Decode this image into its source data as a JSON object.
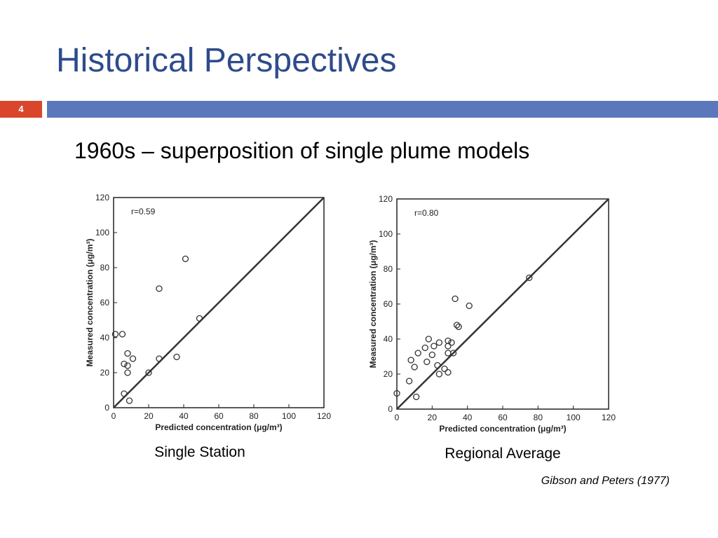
{
  "slide": {
    "title": "Historical Perspectives",
    "number": "4",
    "subtitle": "1960s – superposition of single plume models",
    "captions": [
      "Single Station",
      "Regional Average"
    ],
    "citation": "Gibson and Peters (1977)"
  },
  "chart_data": [
    {
      "type": "scatter",
      "annotation": "r=0.59",
      "x_label": "Predicted concentration (μg/m³)",
      "y_label": "Measured concentration (μg/m³)",
      "x": [
        1,
        5,
        6,
        6,
        8,
        8,
        8,
        9,
        11,
        20,
        26,
        26,
        36,
        41,
        49
      ],
      "values": [
        42,
        42,
        25,
        8,
        31,
        24,
        20,
        4,
        28,
        20,
        28,
        68,
        29,
        85,
        51
      ],
      "color": "#333333",
      "identity_line": true,
      "xlim": [
        0,
        120
      ],
      "ylim": [
        0,
        120
      ],
      "xticks": [
        0,
        20,
        40,
        60,
        80,
        100,
        120
      ],
      "yticks": [
        0,
        20,
        40,
        60,
        80,
        100,
        120
      ]
    },
    {
      "type": "scatter",
      "annotation": "r=0.80",
      "x_label": "Predicted concentration (μg/m³)",
      "y_label": "Measured concentration (μg/m³)",
      "x": [
        0,
        7,
        8,
        10,
        11,
        12,
        16,
        17,
        18,
        20,
        21,
        23,
        24,
        24,
        27,
        29,
        29,
        29,
        29,
        31,
        32,
        33,
        34,
        35,
        41,
        75
      ],
      "values": [
        9,
        16,
        28,
        24,
        7,
        32,
        35,
        27,
        40,
        31,
        36,
        25,
        20,
        38,
        23,
        39,
        36,
        21,
        32,
        38,
        32,
        63,
        48,
        47,
        59,
        75
      ],
      "color": "#333333",
      "identity_line": true,
      "xlim": [
        0,
        120
      ],
      "ylim": [
        0,
        120
      ],
      "xticks": [
        0,
        20,
        40,
        60,
        80,
        100,
        120
      ],
      "yticks": [
        0,
        20,
        40,
        60,
        80,
        100,
        120
      ]
    }
  ]
}
